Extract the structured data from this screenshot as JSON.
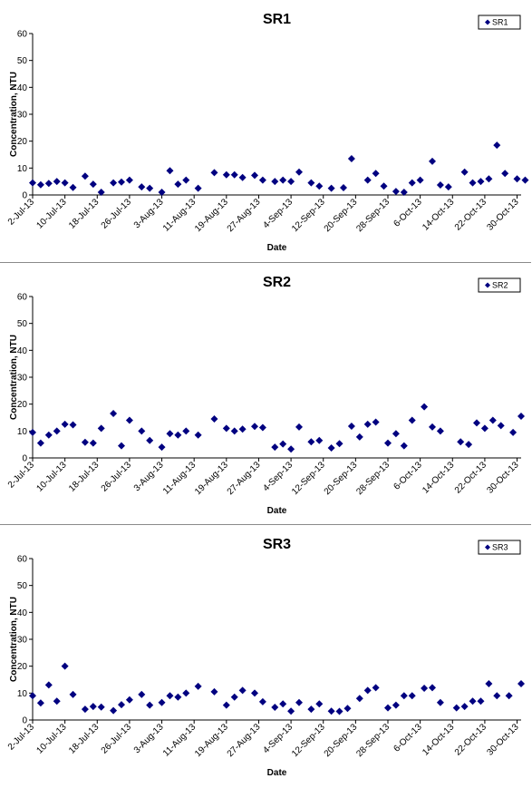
{
  "chart_data": [
    {
      "type": "scatter",
      "title": "SR1",
      "xlabel": "Date",
      "ylabel": "Concentration, NTU",
      "ylim": [
        0,
        60
      ],
      "yticks": [
        0,
        10,
        20,
        30,
        40,
        50,
        60
      ],
      "xlim": [
        "2013-07-02",
        "2013-10-31"
      ],
      "xtick_labels": [
        "2-Jul-13",
        "10-Jul-13",
        "18-Jul-13",
        "26-Jul-13",
        "3-Aug-13",
        "11-Aug-13",
        "19-Aug-13",
        "27-Aug-13",
        "4-Sep-13",
        "12-Sep-13",
        "20-Sep-13",
        "28-Sep-13",
        "6-Oct-13",
        "14-Oct-13",
        "22-Oct-13",
        "30-Oct-13"
      ],
      "grid": false,
      "legend": "top-right",
      "color": "#000080",
      "series": [
        {
          "name": "SR1",
          "points": [
            [
              "2013-07-02",
              4.5
            ],
            [
              "2013-07-04",
              3.8
            ],
            [
              "2013-07-06",
              4.3
            ],
            [
              "2013-07-08",
              5.0
            ],
            [
              "2013-07-10",
              4.5
            ],
            [
              "2013-07-12",
              2.8
            ],
            [
              "2013-07-15",
              7.0
            ],
            [
              "2013-07-17",
              4.0
            ],
            [
              "2013-07-19",
              1.0
            ],
            [
              "2013-07-22",
              4.5
            ],
            [
              "2013-07-24",
              4.8
            ],
            [
              "2013-07-26",
              5.5
            ],
            [
              "2013-07-29",
              3.0
            ],
            [
              "2013-07-31",
              2.5
            ],
            [
              "2013-08-03",
              1.0
            ],
            [
              "2013-08-05",
              9.0
            ],
            [
              "2013-08-07",
              4.0
            ],
            [
              "2013-08-09",
              5.5
            ],
            [
              "2013-08-12",
              2.5
            ],
            [
              "2013-08-16",
              8.3
            ],
            [
              "2013-08-19",
              7.5
            ],
            [
              "2013-08-21",
              7.5
            ],
            [
              "2013-08-23",
              6.5
            ],
            [
              "2013-08-26",
              7.3
            ],
            [
              "2013-08-28",
              5.5
            ],
            [
              "2013-08-31",
              5.0
            ],
            [
              "2013-09-02",
              5.5
            ],
            [
              "2013-09-04",
              5.0
            ],
            [
              "2013-09-06",
              8.5
            ],
            [
              "2013-09-09",
              4.5
            ],
            [
              "2013-09-11",
              3.3
            ],
            [
              "2013-09-14",
              2.5
            ],
            [
              "2013-09-17",
              2.7
            ],
            [
              "2013-09-19",
              13.5
            ],
            [
              "2013-09-23",
              5.5
            ],
            [
              "2013-09-25",
              8.0
            ],
            [
              "2013-09-27",
              3.3
            ],
            [
              "2013-09-30",
              1.3
            ],
            [
              "2013-10-02",
              1.0
            ],
            [
              "2013-10-04",
              4.5
            ],
            [
              "2013-10-06",
              5.5
            ],
            [
              "2013-10-09",
              12.5
            ],
            [
              "2013-10-11",
              3.7
            ],
            [
              "2013-10-13",
              3.0
            ],
            [
              "2013-10-17",
              8.5
            ],
            [
              "2013-10-19",
              4.5
            ],
            [
              "2013-10-21",
              5.0
            ],
            [
              "2013-10-23",
              6.0
            ],
            [
              "2013-10-25",
              18.5
            ],
            [
              "2013-10-27",
              8.0
            ],
            [
              "2013-10-30",
              6.0
            ],
            [
              "2013-11-01",
              5.5
            ]
          ]
        }
      ]
    },
    {
      "type": "scatter",
      "title": "SR2",
      "xlabel": "Date",
      "ylabel": "Concentration, NTU",
      "ylim": [
        0,
        60
      ],
      "yticks": [
        0,
        10,
        20,
        30,
        40,
        50,
        60
      ],
      "xlim": [
        "2013-07-02",
        "2013-10-31"
      ],
      "xtick_labels": [
        "2-Jul-13",
        "10-Jul-13",
        "18-Jul-13",
        "26-Jul-13",
        "3-Aug-13",
        "11-Aug-13",
        "19-Aug-13",
        "27-Aug-13",
        "4-Sep-13",
        "12-Sep-13",
        "20-Sep-13",
        "28-Sep-13",
        "6-Oct-13",
        "14-Oct-13",
        "22-Oct-13",
        "30-Oct-13"
      ],
      "grid": false,
      "legend": "top-right",
      "color": "#000080",
      "series": [
        {
          "name": "SR2",
          "points": [
            [
              "2013-07-02",
              9.5
            ],
            [
              "2013-07-04",
              5.5
            ],
            [
              "2013-07-06",
              8.5
            ],
            [
              "2013-07-08",
              10.0
            ],
            [
              "2013-07-10",
              12.5
            ],
            [
              "2013-07-12",
              12.3
            ],
            [
              "2013-07-15",
              5.8
            ],
            [
              "2013-07-17",
              5.5
            ],
            [
              "2013-07-19",
              11.0
            ],
            [
              "2013-07-22",
              16.5
            ],
            [
              "2013-07-24",
              4.5
            ],
            [
              "2013-07-26",
              14.0
            ],
            [
              "2013-07-29",
              10.0
            ],
            [
              "2013-07-31",
              6.5
            ],
            [
              "2013-08-03",
              4.0
            ],
            [
              "2013-08-05",
              9.0
            ],
            [
              "2013-08-07",
              8.5
            ],
            [
              "2013-08-09",
              10.0
            ],
            [
              "2013-08-12",
              8.5
            ],
            [
              "2013-08-16",
              14.5
            ],
            [
              "2013-08-19",
              11.0
            ],
            [
              "2013-08-21",
              10.0
            ],
            [
              "2013-08-23",
              10.7
            ],
            [
              "2013-08-26",
              11.7
            ],
            [
              "2013-08-28",
              11.3
            ],
            [
              "2013-08-31",
              4.0
            ],
            [
              "2013-09-02",
              5.2
            ],
            [
              "2013-09-04",
              3.3
            ],
            [
              "2013-09-06",
              11.5
            ],
            [
              "2013-09-09",
              6.0
            ],
            [
              "2013-09-11",
              6.5
            ],
            [
              "2013-09-14",
              3.7
            ],
            [
              "2013-09-16",
              5.3
            ],
            [
              "2013-09-19",
              11.8
            ],
            [
              "2013-09-21",
              7.8
            ],
            [
              "2013-09-23",
              12.5
            ],
            [
              "2013-09-25",
              13.3
            ],
            [
              "2013-09-28",
              5.5
            ],
            [
              "2013-09-30",
              9.0
            ],
            [
              "2013-10-02",
              4.5
            ],
            [
              "2013-10-04",
              14.0
            ],
            [
              "2013-10-07",
              19.0
            ],
            [
              "2013-10-09",
              11.5
            ],
            [
              "2013-10-11",
              10.0
            ],
            [
              "2013-10-16",
              6.0
            ],
            [
              "2013-10-18",
              5.0
            ],
            [
              "2013-10-20",
              13.0
            ],
            [
              "2013-10-22",
              11.0
            ],
            [
              "2013-10-24",
              14.0
            ],
            [
              "2013-10-26",
              12.0
            ],
            [
              "2013-10-29",
              9.5
            ],
            [
              "2013-10-31",
              15.5
            ]
          ]
        }
      ]
    },
    {
      "type": "scatter",
      "title": "SR3",
      "xlabel": "Date",
      "ylabel": "Concentration, NTU",
      "ylim": [
        0,
        60
      ],
      "yticks": [
        0,
        10,
        20,
        30,
        40,
        50,
        60
      ],
      "xlim": [
        "2013-07-02",
        "2013-10-31"
      ],
      "xtick_labels": [
        "2-Jul-13",
        "10-Jul-13",
        "18-Jul-13",
        "26-Jul-13",
        "3-Aug-13",
        "11-Aug-13",
        "19-Aug-13",
        "27-Aug-13",
        "4-Sep-13",
        "12-Sep-13",
        "20-Sep-13",
        "28-Sep-13",
        "6-Oct-13",
        "14-Oct-13",
        "22-Oct-13",
        "30-Oct-13"
      ],
      "grid": false,
      "legend": "top-right",
      "color": "#000080",
      "series": [
        {
          "name": "SR3",
          "points": [
            [
              "2013-07-02",
              9.0
            ],
            [
              "2013-07-04",
              6.3
            ],
            [
              "2013-07-06",
              13.0
            ],
            [
              "2013-07-08",
              7.0
            ],
            [
              "2013-07-10",
              20.0
            ],
            [
              "2013-07-12",
              9.5
            ],
            [
              "2013-07-15",
              4.0
            ],
            [
              "2013-07-17",
              5.0
            ],
            [
              "2013-07-19",
              4.8
            ],
            [
              "2013-07-22",
              3.5
            ],
            [
              "2013-07-24",
              5.7
            ],
            [
              "2013-07-26",
              7.5
            ],
            [
              "2013-07-29",
              9.5
            ],
            [
              "2013-07-31",
              5.5
            ],
            [
              "2013-08-03",
              6.5
            ],
            [
              "2013-08-05",
              9.0
            ],
            [
              "2013-08-07",
              8.5
            ],
            [
              "2013-08-09",
              10.0
            ],
            [
              "2013-08-12",
              12.5
            ],
            [
              "2013-08-16",
              10.5
            ],
            [
              "2013-08-19",
              5.5
            ],
            [
              "2013-08-21",
              8.5
            ],
            [
              "2013-08-23",
              11.0
            ],
            [
              "2013-08-26",
              10.0
            ],
            [
              "2013-08-28",
              6.8
            ],
            [
              "2013-08-31",
              4.7
            ],
            [
              "2013-09-02",
              6.0
            ],
            [
              "2013-09-04",
              3.3
            ],
            [
              "2013-09-06",
              6.5
            ],
            [
              "2013-09-09",
              4.0
            ],
            [
              "2013-09-11",
              6.0
            ],
            [
              "2013-09-14",
              3.3
            ],
            [
              "2013-09-16",
              3.2
            ],
            [
              "2013-09-18",
              4.3
            ],
            [
              "2013-09-21",
              8.0
            ],
            [
              "2013-09-23",
              11.0
            ],
            [
              "2013-09-25",
              12.0
            ],
            [
              "2013-09-28",
              4.5
            ],
            [
              "2013-09-30",
              5.5
            ],
            [
              "2013-10-02",
              9.0
            ],
            [
              "2013-10-04",
              9.0
            ],
            [
              "2013-10-07",
              11.8
            ],
            [
              "2013-10-09",
              12.0
            ],
            [
              "2013-10-11",
              6.5
            ],
            [
              "2013-10-15",
              4.5
            ],
            [
              "2013-10-17",
              5.0
            ],
            [
              "2013-10-19",
              7.0
            ],
            [
              "2013-10-21",
              7.0
            ],
            [
              "2013-10-23",
              13.5
            ],
            [
              "2013-10-25",
              9.0
            ],
            [
              "2013-10-28",
              9.0
            ],
            [
              "2013-10-31",
              13.5
            ]
          ]
        }
      ]
    }
  ]
}
